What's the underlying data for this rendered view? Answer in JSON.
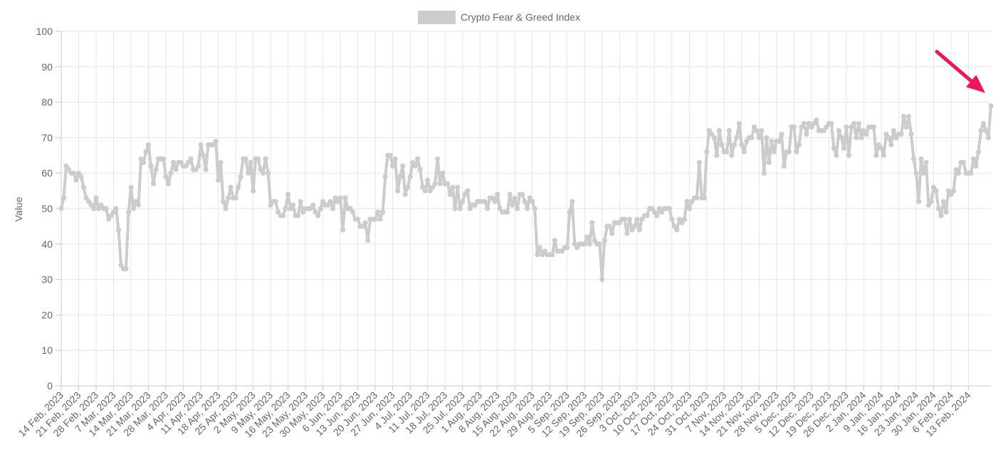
{
  "chart_data": {
    "type": "line",
    "legend": {
      "label": "Crypto Fear & Greed Index",
      "position": "top-center"
    },
    "ylabel": "Value",
    "xlabel": "",
    "ylim": [
      0,
      100
    ],
    "yticks": [
      0,
      10,
      20,
      30,
      40,
      50,
      60,
      70,
      80,
      90,
      100
    ],
    "grid": true,
    "x_tick_labels": [
      "14 Feb, 2023",
      "21 Feb, 2023",
      "28 Feb, 2023",
      "7 Mar, 2023",
      "14 Mar, 2023",
      "21 Mar, 2023",
      "28 Mar, 2023",
      "4 Apr, 2023",
      "11 Apr, 2023",
      "18 Apr, 2023",
      "25 Apr, 2023",
      "2 May, 2023",
      "9 May, 2023",
      "16 May, 2023",
      "23 May, 2023",
      "30 May, 2023",
      "6 Jun, 2023",
      "13 Jun, 2023",
      "20 Jun, 2023",
      "27 Jun, 2023",
      "4 Jul, 2023",
      "11 Jul, 2023",
      "18 Jul, 2023",
      "25 Jul, 2023",
      "1 Aug, 2023",
      "8 Aug, 2023",
      "15 Aug, 2023",
      "22 Aug, 2023",
      "29 Aug, 2023",
      "5 Sep, 2023",
      "12 Sep, 2023",
      "19 Sep, 2023",
      "26 Sep, 2023",
      "3 Oct, 2023",
      "10 Oct, 2023",
      "17 Oct, 2023",
      "24 Oct, 2023",
      "31 Oct, 2023",
      "7 Nov, 2023",
      "14 Nov, 2023",
      "21 Nov, 2023",
      "28 Nov, 2023",
      "5 Dec, 2023",
      "12 Dec, 2023",
      "19 Dec, 2023",
      "26 Dec, 2023",
      "2 Jan, 2024",
      "9 Jan, 2024",
      "16 Jan, 2024",
      "23 Jan, 2024",
      "30 Jan, 2024",
      "6 Feb, 2024",
      "13 Feb, 2024"
    ],
    "series": [
      {
        "name": "Crypto Fear & Greed Index",
        "color": "#cccccc",
        "values": [
          50,
          53,
          62,
          61,
          60,
          60,
          58,
          60,
          59,
          56,
          53,
          52,
          51,
          50,
          53,
          50,
          51,
          50,
          50,
          47,
          48,
          49,
          50,
          44,
          34,
          33,
          33,
          49,
          56,
          50,
          52,
          51,
          64,
          63,
          66,
          68,
          62,
          57,
          61,
          64,
          64,
          64,
          59,
          57,
          60,
          63,
          61,
          63,
          63,
          62,
          62,
          63,
          64,
          61,
          61,
          62,
          68,
          65,
          61,
          68,
          68,
          68,
          69,
          58,
          63,
          52,
          50,
          53,
          56,
          53,
          53,
          56,
          59,
          64,
          64,
          60,
          63,
          55,
          64,
          64,
          61,
          60,
          64,
          60,
          51,
          52,
          52,
          49,
          48,
          48,
          50,
          54,
          50,
          51,
          48,
          48,
          52,
          49,
          50,
          50,
          50,
          51,
          49,
          48,
          50,
          52,
          51,
          51,
          52,
          50,
          53,
          52,
          53,
          44,
          53,
          50,
          50,
          49,
          47,
          47,
          45,
          45,
          46,
          41,
          47,
          47,
          47,
          49,
          47,
          49,
          59,
          65,
          65,
          62,
          64,
          55,
          59,
          62,
          54,
          56,
          59,
          63,
          62,
          64,
          61,
          56,
          55,
          58,
          55,
          56,
          57,
          64,
          57,
          60,
          57,
          57,
          54,
          56,
          50,
          56,
          50,
          52,
          54,
          55,
          50,
          51,
          51,
          52,
          52,
          52,
          52,
          50,
          53,
          53,
          52,
          54,
          50,
          49,
          49,
          49,
          54,
          51,
          53,
          50,
          54,
          54,
          52,
          50,
          53,
          52,
          50,
          37,
          39,
          37,
          38,
          37,
          37,
          37,
          41,
          38,
          38,
          38,
          39,
          39,
          49,
          52,
          40,
          39,
          40,
          40,
          40,
          42,
          40,
          46,
          41,
          40,
          40,
          30,
          41,
          45,
          45,
          43,
          46,
          46,
          46,
          47,
          47,
          43,
          47,
          44,
          45,
          47,
          44,
          47,
          48,
          48,
          50,
          50,
          49,
          48,
          50,
          49,
          50,
          50,
          50,
          47,
          45,
          44,
          47,
          46,
          47,
          52,
          50,
          52,
          53,
          53,
          63,
          53,
          53,
          66,
          72,
          71,
          70,
          65,
          72,
          68,
          66,
          66,
          72,
          65,
          68,
          70,
          74,
          68,
          66,
          69,
          70,
          70,
          73,
          72,
          70,
          72,
          60,
          70,
          63,
          69,
          66,
          69,
          69,
          71,
          62,
          66,
          66,
          73,
          73,
          66,
          68,
          73,
          74,
          71,
          74,
          73,
          74,
          75,
          72,
          72,
          72,
          73,
          74,
          74,
          67,
          65,
          72,
          70,
          67,
          73,
          65,
          73,
          74,
          70,
          74,
          70,
          72,
          71,
          73,
          73,
          73,
          65,
          68,
          67,
          65,
          71,
          70,
          68,
          72,
          70,
          71,
          71,
          76,
          73,
          76,
          71,
          64,
          60,
          52,
          64,
          60,
          63,
          51,
          52,
          56,
          55,
          50,
          48,
          52,
          49,
          55,
          54,
          55,
          61,
          60,
          63,
          63,
          60,
          60,
          60,
          64,
          62,
          66,
          72,
          74,
          72,
          70,
          79
        ]
      }
    ],
    "annotation": {
      "type": "arrow",
      "color": "#f0145a",
      "points_to": "last value"
    }
  }
}
